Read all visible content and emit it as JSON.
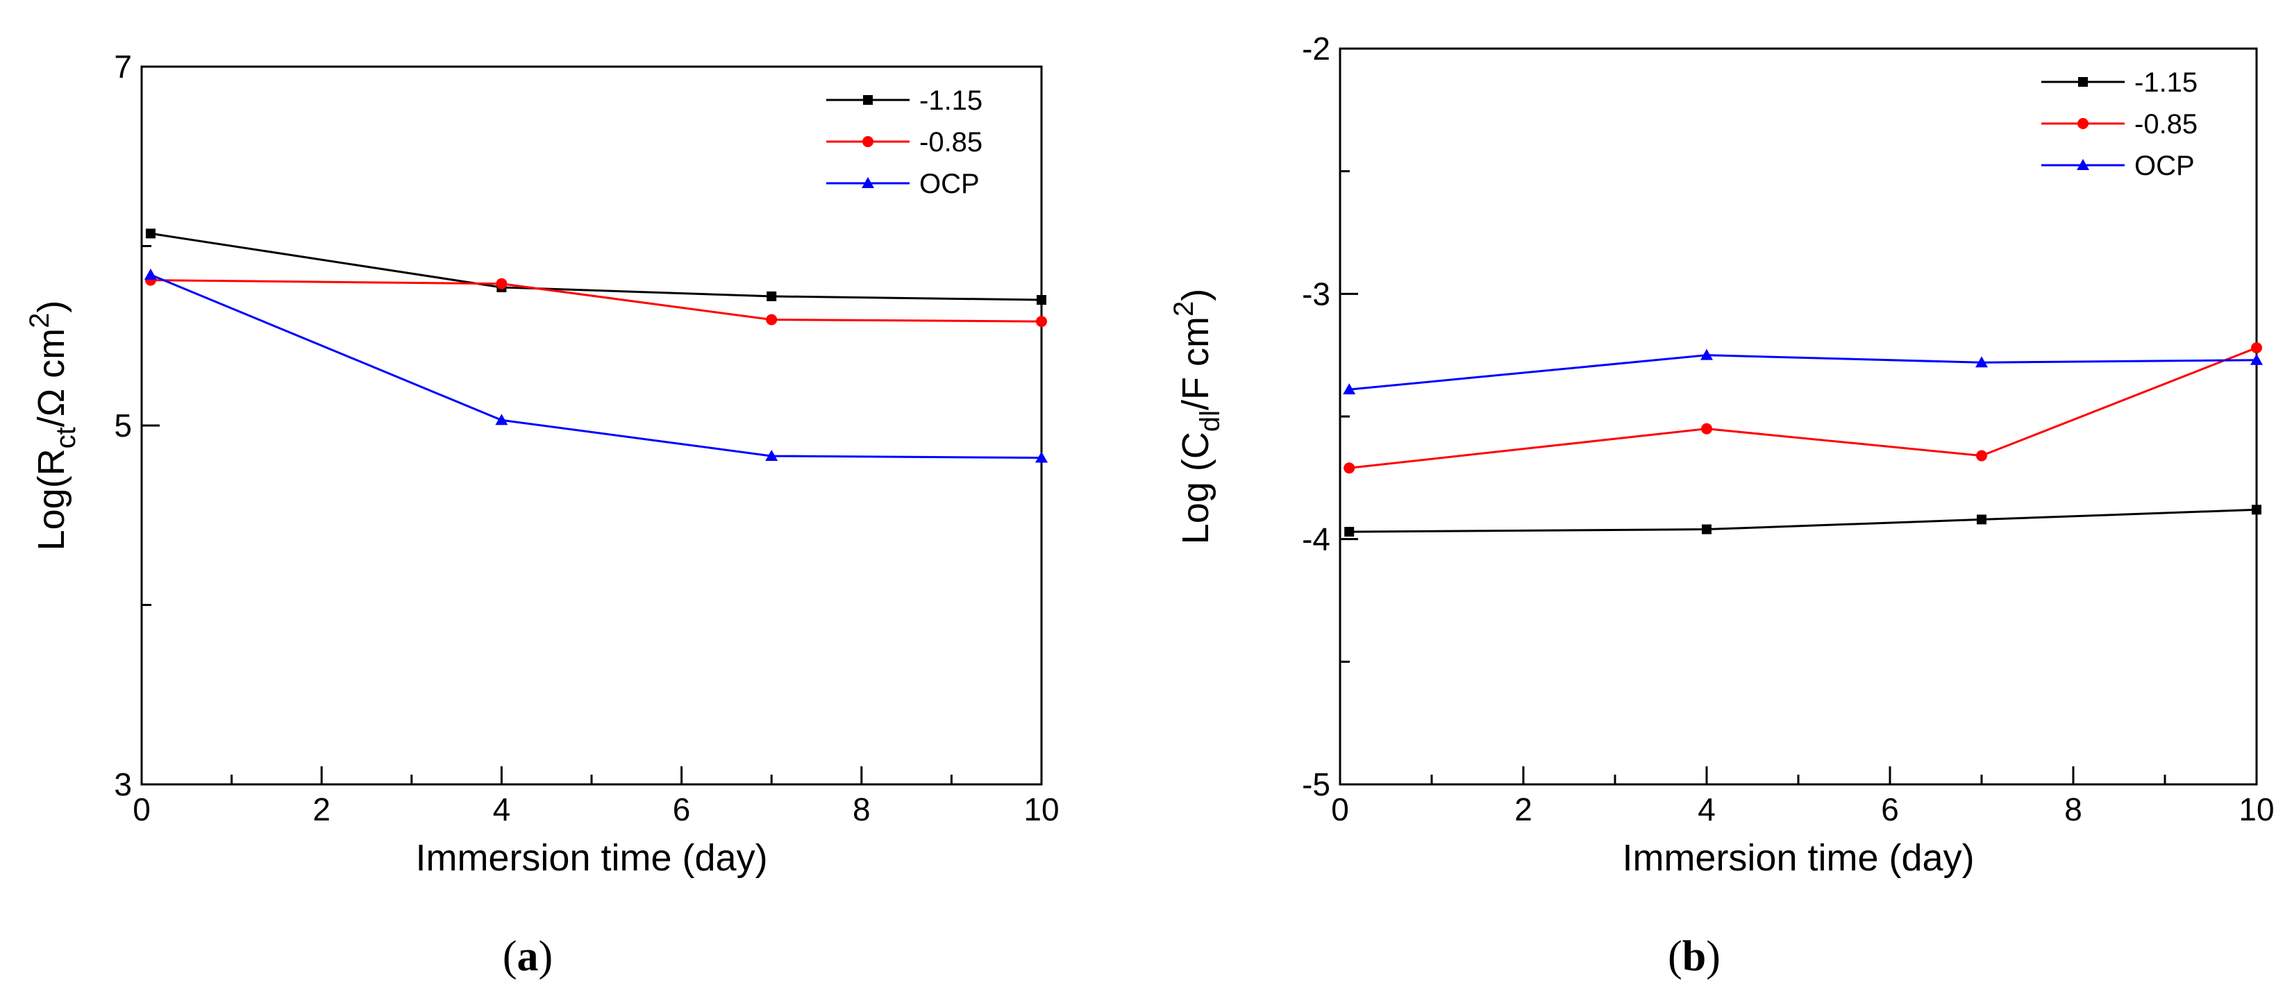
{
  "chart_data": [
    {
      "id": "a",
      "type": "line",
      "panel_label": {
        "open": "(",
        "letter": "a",
        "close": ")"
      },
      "xlabel": "Immersion time (day)",
      "ylabel": {
        "prefix": "Log(R",
        "sub": "ct",
        "mid": "/Ω cm",
        "sup": "2",
        "suffix": ")"
      },
      "xlim": [
        0,
        10
      ],
      "ylim": [
        3,
        7
      ],
      "xticks": [
        0,
        2,
        4,
        6,
        8,
        10
      ],
      "yticks": [
        3,
        5,
        7
      ],
      "x_tick_labels": [
        "0",
        "2",
        "4",
        "6",
        "8",
        "10"
      ],
      "y_tick_labels": [
        "3",
        "5",
        "7"
      ],
      "x": [
        0.1,
        4,
        7,
        10
      ],
      "legend_position": "top-right",
      "series": [
        {
          "name": "-1.15",
          "color": "#000000",
          "marker": "square",
          "values": [
            6.07,
            5.77,
            5.72,
            5.7
          ]
        },
        {
          "name": "-0.85",
          "color": "#ff0000",
          "marker": "circle",
          "values": [
            5.81,
            5.79,
            5.59,
            5.58
          ]
        },
        {
          "name": "OCP",
          "color": "#0000ff",
          "marker": "triangle",
          "values": [
            5.84,
            5.03,
            4.83,
            4.82
          ]
        }
      ]
    },
    {
      "id": "b",
      "type": "line",
      "panel_label": {
        "open": "(",
        "letter": "b",
        "close": ")"
      },
      "xlabel": "Immersion time (day)",
      "ylabel": {
        "prefix": "Log (C",
        "sub": "dl",
        "mid": "/F cm",
        "sup": "2",
        "suffix": ")"
      },
      "xlim": [
        0,
        10
      ],
      "ylim": [
        -5,
        -2
      ],
      "xticks": [
        0,
        2,
        4,
        6,
        8,
        10
      ],
      "yticks": [
        -5,
        -4,
        -3,
        -2
      ],
      "x_tick_labels": [
        "0",
        "2",
        "4",
        "6",
        "8",
        "10"
      ],
      "y_tick_labels": [
        "-5",
        "-4",
        "-3",
        "-2"
      ],
      "x": [
        0.1,
        4,
        7,
        10
      ],
      "legend_position": "top-right",
      "series": [
        {
          "name": "-1.15",
          "color": "#000000",
          "marker": "square",
          "values": [
            -3.97,
            -3.96,
            -3.92,
            -3.88
          ]
        },
        {
          "name": "-0.85",
          "color": "#ff0000",
          "marker": "circle",
          "values": [
            -3.71,
            -3.55,
            -3.66,
            -3.22
          ]
        },
        {
          "name": "OCP",
          "color": "#0000ff",
          "marker": "triangle",
          "values": [
            -3.39,
            -3.25,
            -3.28,
            -3.27
          ]
        }
      ]
    }
  ]
}
